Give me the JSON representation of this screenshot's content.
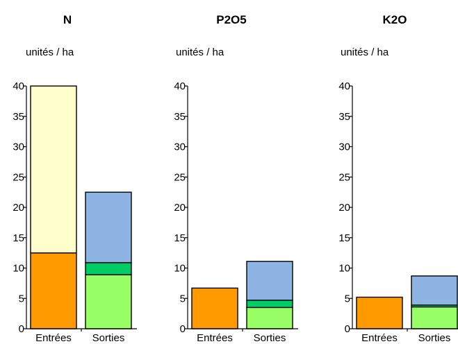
{
  "chart_data": [
    {
      "type": "bar",
      "stacked": true,
      "title": "N",
      "ylabel": "unités / ha",
      "ylim": [
        0,
        40
      ],
      "yticks": [
        0,
        5,
        10,
        15,
        20,
        25,
        30,
        35,
        40
      ],
      "categories": [
        "Entrées",
        "Sorties"
      ],
      "bars": [
        {
          "category": "Entrées",
          "segments": [
            {
              "value": 12.5,
              "color": "#ff9900"
            },
            {
              "value": 27.5,
              "color": "#ffffcc"
            }
          ]
        },
        {
          "category": "Sorties",
          "segments": [
            {
              "value": 8.9,
              "color": "#99ff66"
            },
            {
              "value": 2.0,
              "color": "#00cc66"
            },
            {
              "value": 11.6,
              "color": "#8eb4e3"
            }
          ]
        }
      ]
    },
    {
      "type": "bar",
      "stacked": true,
      "title": "P2O5",
      "ylabel": "unités / ha",
      "ylim": [
        0,
        40
      ],
      "yticks": [
        0,
        5,
        10,
        15,
        20,
        25,
        30,
        35,
        40
      ],
      "categories": [
        "Entrées",
        "Sorties"
      ],
      "bars": [
        {
          "category": "Entrées",
          "segments": [
            {
              "value": 6.7,
              "color": "#ff9900"
            }
          ]
        },
        {
          "category": "Sorties",
          "segments": [
            {
              "value": 3.5,
              "color": "#99ff66"
            },
            {
              "value": 1.2,
              "color": "#00cc66"
            },
            {
              "value": 6.4,
              "color": "#8eb4e3"
            }
          ]
        }
      ]
    },
    {
      "type": "bar",
      "stacked": true,
      "title": "K2O",
      "ylabel": "unités / ha",
      "ylim": [
        0,
        40
      ],
      "yticks": [
        0,
        5,
        10,
        15,
        20,
        25,
        30,
        35,
        40
      ],
      "categories": [
        "Entrées",
        "Sorties"
      ],
      "bars": [
        {
          "category": "Entrées",
          "segments": [
            {
              "value": 5.2,
              "color": "#ff9900"
            }
          ]
        },
        {
          "category": "Sorties",
          "segments": [
            {
              "value": 3.6,
              "color": "#99ff66"
            },
            {
              "value": 0.3,
              "color": "#00cc66"
            },
            {
              "value": 4.8,
              "color": "#8eb4e3"
            }
          ]
        }
      ]
    }
  ]
}
